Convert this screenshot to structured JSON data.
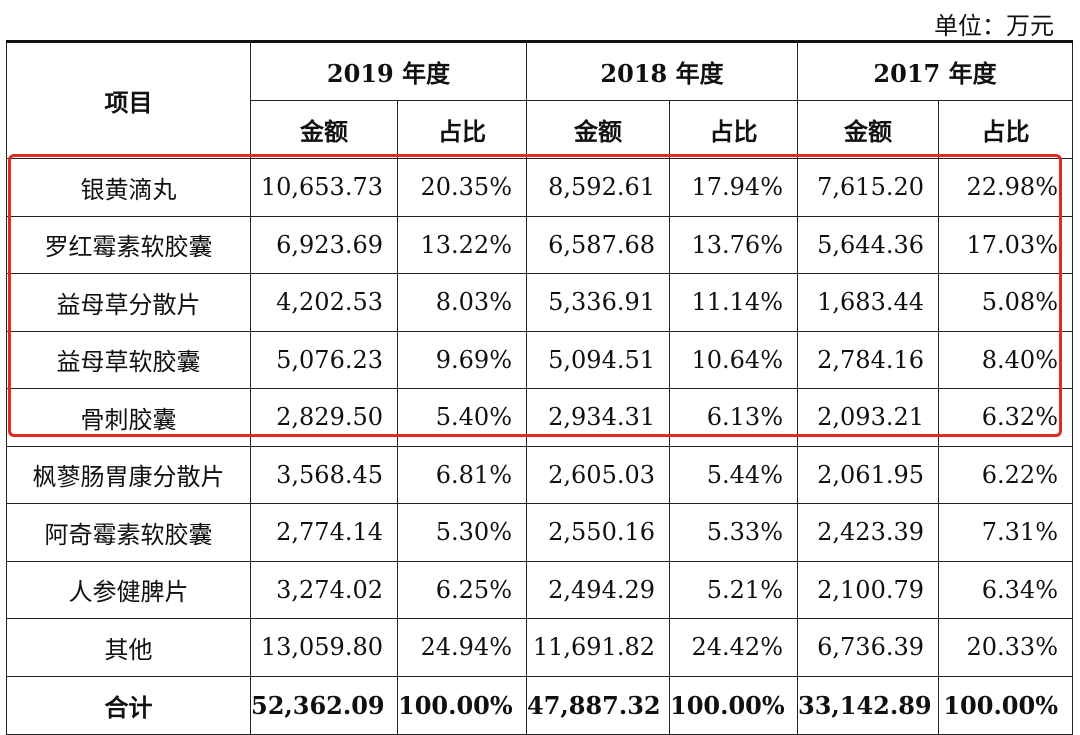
{
  "unit_label": "单位：万元",
  "header": {
    "item": "项目",
    "years": [
      "2019 年度",
      "2018 年度",
      "2017 年度"
    ],
    "amount": "金额",
    "ratio": "占比"
  },
  "rows": [
    {
      "name": "银黄滴丸",
      "v": [
        "10,653.73",
        "20.35%",
        "8,592.61",
        "17.94%",
        "7,615.20",
        "22.98%"
      ]
    },
    {
      "name": "罗红霉素软胶囊",
      "v": [
        "6,923.69",
        "13.22%",
        "6,587.68",
        "13.76%",
        "5,644.36",
        "17.03%"
      ]
    },
    {
      "name": "益母草分散片",
      "v": [
        "4,202.53",
        "8.03%",
        "5,336.91",
        "11.14%",
        "1,683.44",
        "5.08%"
      ]
    },
    {
      "name": "益母草软胶囊",
      "v": [
        "5,076.23",
        "9.69%",
        "5,094.51",
        "10.64%",
        "2,784.16",
        "8.40%"
      ]
    },
    {
      "name": "骨刺胶囊",
      "v": [
        "2,829.50",
        "5.40%",
        "2,934.31",
        "6.13%",
        "2,093.21",
        "6.32%"
      ]
    },
    {
      "name": "枫蓼肠胃康分散片",
      "v": [
        "3,568.45",
        "6.81%",
        "2,605.03",
        "5.44%",
        "2,061.95",
        "6.22%"
      ]
    },
    {
      "name": "阿奇霉素软胶囊",
      "v": [
        "2,774.14",
        "5.30%",
        "2,550.16",
        "5.33%",
        "2,423.39",
        "7.31%"
      ]
    },
    {
      "name": "人参健脾片",
      "v": [
        "3,274.02",
        "6.25%",
        "2,494.29",
        "5.21%",
        "2,100.79",
        "6.34%"
      ]
    },
    {
      "name": "其他",
      "v": [
        "13,059.80",
        "24.94%",
        "11,691.82",
        "24.42%",
        "6,736.39",
        "20.33%"
      ]
    }
  ],
  "total": {
    "name": "合计",
    "v": [
      "52,362.09",
      "100.00%",
      "47,887.32",
      "100.00%",
      "33,142.89",
      "100.00%"
    ]
  },
  "highlight_color": "#e02a1e"
}
